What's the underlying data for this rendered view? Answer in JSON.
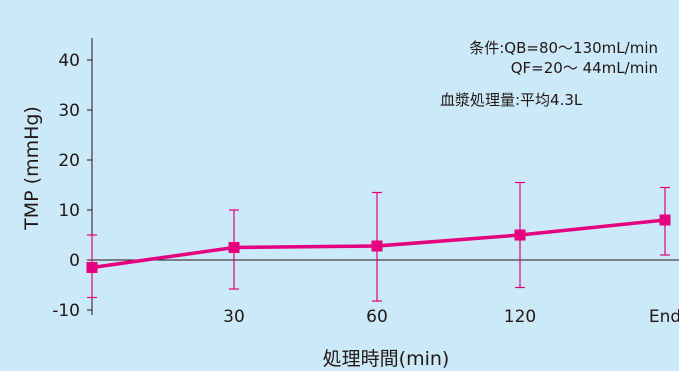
{
  "chart_data": {
    "type": "line",
    "title": "",
    "xlabel": "処理時間(min)",
    "ylabel": "TMP (mmHg)",
    "categories": [
      "0",
      "30",
      "60",
      "120",
      "End"
    ],
    "x_tick_labels": [
      "",
      "30",
      "60",
      "120",
      "End"
    ],
    "ylim": [
      -10,
      45
    ],
    "yticks": [
      -10,
      0,
      10,
      20,
      30,
      40
    ],
    "grid": false,
    "legend": "none",
    "series": [
      {
        "values": [
          -1.5,
          2.5,
          2.8,
          5.0,
          8.0
        ],
        "error_upper": [
          5.0,
          10.0,
          13.5,
          15.5,
          14.5
        ],
        "error_lower": [
          -7.5,
          -5.8,
          -8.2,
          -5.5,
          1.0
        ],
        "color": "#e4007f",
        "marker": "square"
      }
    ],
    "annotations": [
      "条件:QB=80～130mL/min",
      "QF=20～ 44mL/min",
      "血漿処理量:平均4.3L"
    ]
  },
  "colors": {
    "background": "#cbe9f8",
    "axis": "#231815",
    "series": "#e4007f"
  }
}
